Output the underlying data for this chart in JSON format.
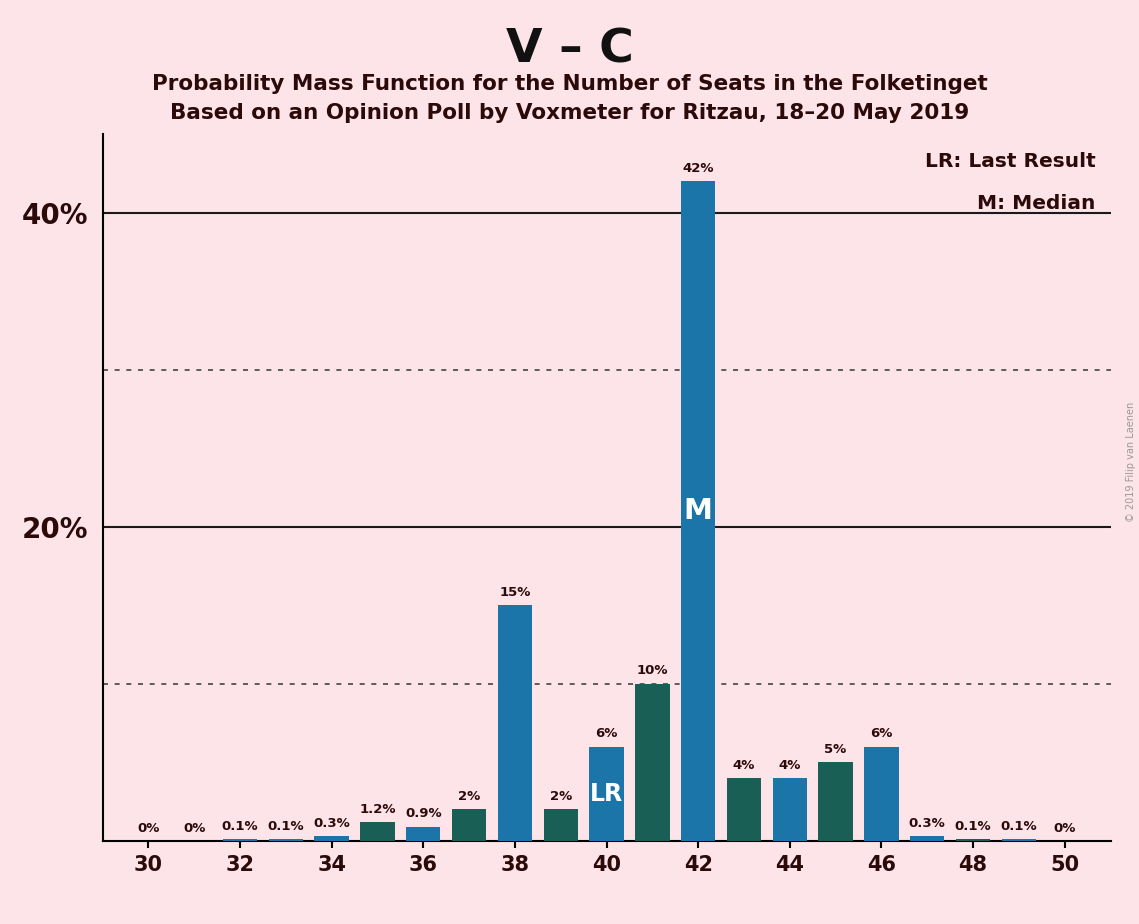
{
  "title_main": "V – C",
  "title_sub1": "Probability Mass Function for the Number of Seats in the Folketinget",
  "title_sub2": "Based on an Opinion Poll by Voxmeter for Ritzau, 18–20 May 2019",
  "copyright": "© 2019 Filip van Laenen",
  "legend_lr": "LR: Last Result",
  "legend_m": "M: Median",
  "seats": [
    30,
    31,
    32,
    33,
    34,
    35,
    36,
    37,
    38,
    39,
    40,
    41,
    42,
    43,
    44,
    45,
    46,
    47,
    48,
    49,
    50
  ],
  "values": [
    0.0,
    0.0,
    0.1,
    0.1,
    0.3,
    1.2,
    0.9,
    2.0,
    15.0,
    2.0,
    6.0,
    10.0,
    42.0,
    4.0,
    4.0,
    5.0,
    6.0,
    0.3,
    0.1,
    0.1,
    0.0
  ],
  "colors": [
    "#1b75a8",
    "#1b75a8",
    "#1b75a8",
    "#1b75a8",
    "#1b75a8",
    "#1a5f55",
    "#1b75a8",
    "#1a5f55",
    "#1b75a8",
    "#1a5f55",
    "#1b75a8",
    "#1a5f55",
    "#1b75a8",
    "#1a5f55",
    "#1b75a8",
    "#1a5f55",
    "#1b75a8",
    "#1b75a8",
    "#1a5f55",
    "#1b75a8",
    "#1b75a8"
  ],
  "lr_seat": 40,
  "median_seat": 42,
  "bar_color_blue": "#1b75a8",
  "bar_color_teal": "#1a5f55",
  "bg_color": "#fce4e8",
  "text_color": "#2d0a0a",
  "label_color": "#2d0a0a",
  "grid_solid_color": "#1a1a1a",
  "grid_dot_color": "#444444",
  "ylim": [
    0,
    45
  ],
  "ytick_labels": [
    20,
    40
  ],
  "ytick_dotted": [
    10,
    30
  ],
  "xmin": 29.0,
  "xmax": 51.0,
  "bar_width": 0.75
}
